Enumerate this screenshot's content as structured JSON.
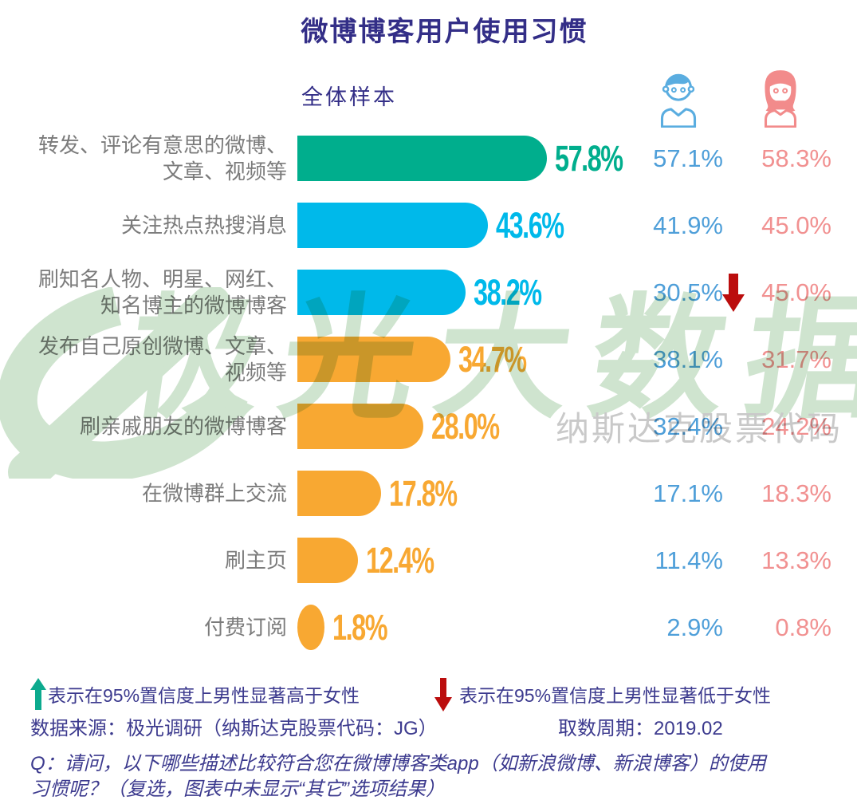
{
  "title": "微博博客用户使用习惯",
  "subtitle": "全体样本",
  "colors": {
    "title_text": "#332e87",
    "category_text": "#7b7b7b",
    "green_bar": "#00ae8d",
    "blue_bar": "#00b9ea",
    "orange_bar": "#f8a832",
    "male_text": "#4f9fd9",
    "female_text": "#f19191",
    "up_arrow": "#0caa8e",
    "down_arrow": "#bb0d0d",
    "watermark_green": "#cfe4cf",
    "watermark_gray": "#c9c9c9"
  },
  "chart_data": {
    "type": "bar",
    "orientation": "horizontal",
    "unit": "%",
    "title": "微博博客用户使用习惯",
    "subtitle": "全体样本",
    "xlim": [
      0,
      60
    ],
    "grid": false,
    "categories": [
      "转发、评论有意思的微博、文章、视频等",
      "关注热点热搜消息",
      "刷知名人物、明星、网红、知名博主的微博博客",
      "发布自己原创微博、文章、视频等",
      "刷亲戚朋友的微博博客",
      "在微博群上交流",
      "刷主页",
      "付费订阅"
    ],
    "series": [
      {
        "name": "全体样本",
        "values": [
          57.8,
          43.6,
          38.2,
          34.7,
          28.0,
          17.8,
          12.4,
          1.8
        ]
      },
      {
        "name": "男性",
        "values": [
          57.1,
          41.9,
          30.5,
          38.1,
          32.4,
          17.1,
          11.4,
          2.9
        ]
      },
      {
        "name": "女性",
        "values": [
          58.3,
          45.0,
          45.0,
          31.7,
          24.2,
          18.3,
          13.3,
          0.8
        ]
      }
    ],
    "significance_markers": [
      {
        "category_index": 2,
        "direction": "down",
        "meaning": "男性显著低于女性"
      }
    ]
  },
  "rows": [
    {
      "label_lines": [
        "转发、评论有意思的微博、",
        "文章、视频等"
      ],
      "value": 57.8,
      "value_label": "57.8%",
      "color": "#00ae8d",
      "male": "57.1%",
      "female": "58.3%",
      "marker": null
    },
    {
      "label_lines": [
        "关注热点热搜消息"
      ],
      "value": 43.6,
      "value_label": "43.6%",
      "color": "#00b9ea",
      "male": "41.9%",
      "female": "45.0%",
      "marker": null
    },
    {
      "label_lines": [
        "刷知名人物、明星、网红、",
        "知名博主的微博博客"
      ],
      "value": 38.2,
      "value_label": "38.2%",
      "color": "#00b9ea",
      "male": "30.5%",
      "female": "45.0%",
      "marker": "down"
    },
    {
      "label_lines": [
        "发布自己原创微博、文章、",
        "视频等"
      ],
      "value": 34.7,
      "value_label": "34.7%",
      "color": "#f8a832",
      "male": "38.1%",
      "female": "31.7%",
      "marker": null
    },
    {
      "label_lines": [
        "刷亲戚朋友的微博博客"
      ],
      "value": 28.0,
      "value_label": "28.0%",
      "color": "#f8a832",
      "male": "32.4%",
      "female": "24.2%",
      "marker": null
    },
    {
      "label_lines": [
        "在微博群上交流"
      ],
      "value": 17.8,
      "value_label": "17.8%",
      "color": "#f8a832",
      "male": "17.1%",
      "female": "18.3%",
      "marker": null
    },
    {
      "label_lines": [
        "刷主页"
      ],
      "value": 12.4,
      "value_label": "12.4%",
      "color": "#f8a832",
      "male": "11.4%",
      "female": "13.3%",
      "marker": null
    },
    {
      "label_lines": [
        "付费订阅"
      ],
      "value": 1.8,
      "value_label": "1.8%",
      "color": "#f8a832",
      "male": "2.9%",
      "female": "0.8%",
      "marker": null
    }
  ],
  "icons": {
    "male": "boy-icon",
    "female": "girl-icon"
  },
  "watermark": {
    "text": "极光大数据",
    "subtext": "纳斯达克股票代码"
  },
  "footer": {
    "legend_up": "表示在95%置信度上男性显著高于女性",
    "legend_down": "表示在95%置信度上男性显著低于女性",
    "source": "数据来源：极光调研（纳斯达克股票代码：JG）",
    "period": "取数周期：2019.02",
    "question_line1": "Q：请问，以下哪些描述比较符合您在微博博客类app（如新浪微博、新浪博客）的使用",
    "question_line2": "习惯呢？（复选，图表中未显示“其它”选项结果）"
  }
}
